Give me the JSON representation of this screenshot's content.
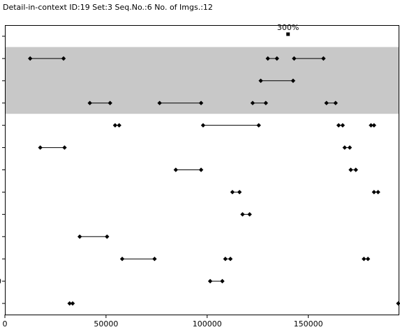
{
  "header": {
    "title": "Detail-in-context  ID:19  Set:3  Seq.No.:6  No. of Imgs.:12"
  },
  "chart_data": {
    "type": "scatter",
    "title": "Detail-in-context  ID:19  Set:3  Seq.No.:6  No. of Imgs.:12",
    "xlabel": "",
    "ylabel": "",
    "xlim": [
      0,
      195000
    ],
    "x_ticks": [
      0,
      50000,
      100000,
      150000
    ],
    "x_tick_labels": [
      "0",
      "50000",
      "100000",
      "150000"
    ],
    "y_tick_labels": [
      "",
      "",
      "",
      "",
      "",
      "",
      "",
      "",
      "",
      "",
      "",
      "0",
      ""
    ],
    "grid": false,
    "highlight_rows": [
      1,
      3
    ],
    "highlight_color": "#c8c8c8",
    "annotation": {
      "text": "300%",
      "x": 140000,
      "row": 1
    },
    "segments": [
      {
        "row": 1,
        "x": [
          12500,
          29000
        ]
      },
      {
        "row": 1,
        "x": [
          130000,
          134500
        ]
      },
      {
        "row": 1,
        "x": [
          143000,
          157500
        ]
      },
      {
        "row": 2,
        "x": [
          126500,
          142500
        ]
      },
      {
        "row": 3,
        "x": [
          42000,
          52000
        ]
      },
      {
        "row": 3,
        "x": [
          76500,
          97000
        ]
      },
      {
        "row": 3,
        "x": [
          122500,
          129000
        ]
      },
      {
        "row": 3,
        "x": [
          159000,
          163500
        ]
      },
      {
        "row": 4,
        "x": [
          54500,
          56500
        ]
      },
      {
        "row": 4,
        "x": [
          98000,
          125500
        ]
      },
      {
        "row": 4,
        "x": [
          165000,
          167000
        ]
      },
      {
        "row": 4,
        "x": [
          181000,
          182500
        ]
      },
      {
        "row": 5,
        "x": [
          17500,
          29500
        ]
      },
      {
        "row": 5,
        "x": [
          168000,
          170500
        ]
      },
      {
        "row": 6,
        "x": [
          84500,
          97000
        ]
      },
      {
        "row": 6,
        "x": [
          171000,
          173500
        ]
      },
      {
        "row": 7,
        "x": [
          112500,
          116000
        ]
      },
      {
        "row": 7,
        "x": [
          182500,
          184500
        ]
      },
      {
        "row": 8,
        "x": [
          117500,
          121000
        ]
      },
      {
        "row": 9,
        "x": [
          37000,
          50500
        ]
      },
      {
        "row": 10,
        "x": [
          58000,
          74000
        ]
      },
      {
        "row": 10,
        "x": [
          109000,
          111500
        ]
      },
      {
        "row": 10,
        "x": [
          177500,
          179500
        ]
      },
      {
        "row": 11,
        "x": [
          101500,
          107500
        ]
      },
      {
        "row": 12,
        "x": [
          32000,
          33500
        ]
      },
      {
        "row": 12,
        "x": [
          194500,
          194500
        ]
      }
    ]
  },
  "colors": {
    "plot_background": "#ffffff",
    "highlight": "#c8c8c8",
    "marker": "#000000",
    "line": "#000000"
  }
}
